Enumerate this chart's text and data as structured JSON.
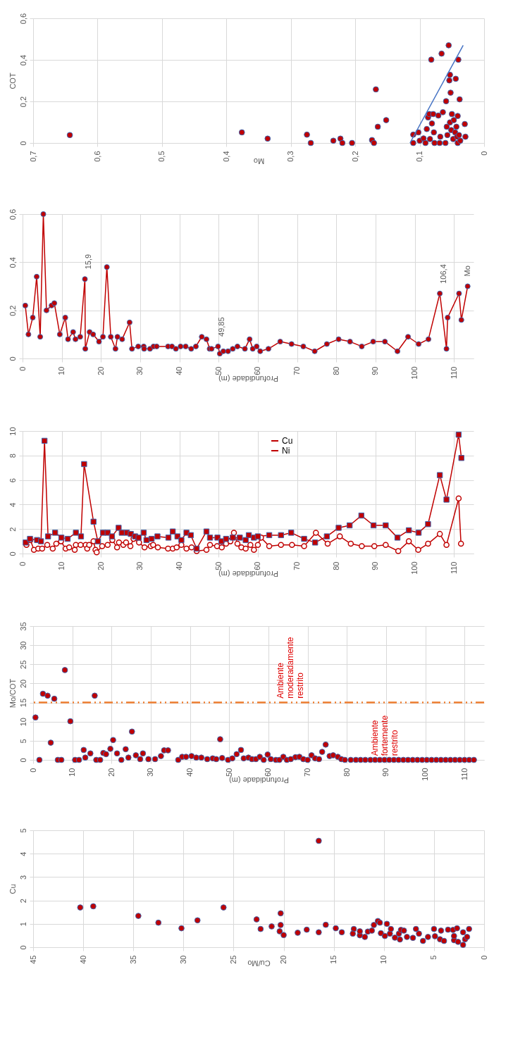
{
  "chart_data": [
    {
      "type": "scatter",
      "xlabel": "Mo",
      "ylabel": "COT",
      "grid": true,
      "xlim": [
        0.7,
        0
      ],
      "xticks": [
        {
          "value": 0.7,
          "label": "0,7"
        },
        {
          "value": 0.6,
          "label": "0,6"
        },
        {
          "value": 0.5,
          "label": "0,5"
        },
        {
          "value": 0.4,
          "label": "0,4"
        },
        {
          "value": 0.3,
          "label": "0,3"
        },
        {
          "value": 0.2,
          "label": "0,2"
        },
        {
          "value": 0.1,
          "label": "0,1"
        },
        0
      ],
      "ylim": [
        0,
        0.6
      ],
      "yticks": [
        0,
        {
          "value": 0.2,
          "label": "0,2"
        },
        {
          "value": 0.4,
          "label": "0,4"
        },
        {
          "value": 0.6,
          "label": "0,6"
        }
      ],
      "series": [
        {
          "color": "#c00000",
          "marker": "circle",
          "x": [
            0.643,
            0.376,
            0.336,
            0.275,
            0.269,
            0.234,
            0.223,
            0.22,
            0.205,
            0.174,
            0.171,
            0.168,
            0.165,
            0.152,
            0.11,
            0.11,
            0.102,
            0.1,
            0.094,
            0.091,
            0.089,
            0.087,
            0.085,
            0.084,
            0.082,
            0.081,
            0.079,
            0.078,
            0.077,
            0.071,
            0.069,
            0.068,
            0.066,
            0.064,
            0.06,
            0.059,
            0.058,
            0.057,
            0.055,
            0.054,
            0.053,
            0.053,
            0.052,
            0.051,
            0.05,
            0.048,
            0.047,
            0.045,
            0.044,
            0.043,
            0.042,
            0.041,
            0.041,
            0.04,
            0.039,
            0.038,
            0.037,
            0.03,
            0.029
          ],
          "values": [
            0.038,
            0.051,
            0.021,
            0.04,
            0,
            0.011,
            0.021,
            0,
            0,
            0.014,
            0,
            0.258,
            0.078,
            0.11,
            0.04,
            0,
            0.051,
            0.011,
            0.022,
            0,
            0.067,
            0.123,
            0.139,
            0.019,
            0.401,
            0.094,
            0.139,
            0.051,
            0,
            0.132,
            0,
            0.03,
            0.43,
            0.148,
            0,
            0.201,
            0.078,
            0.038,
            0.47,
            0.301,
            0.328,
            0.099,
            0.242,
            0.062,
            0.139,
            0.019,
            0.11,
            0.051,
            0.309,
            0.078,
            0.03,
            0.13,
            0,
            0.401,
            0.038,
            0.21,
            0.011,
            0.091,
            0.03
          ]
        },
        {
          "type": "line",
          "color": "#4472c4",
          "x": [
            0.115,
            0.0325
          ],
          "values": [
            0,
            0.47
          ]
        }
      ]
    },
    {
      "type": "line",
      "xlabel": "Profundidade (m)",
      "grid": true,
      "marker": "circle",
      "xlim": [
        0,
        115
      ],
      "xticks": [
        0,
        10,
        20,
        30,
        40,
        50,
        60,
        70,
        80,
        90,
        100,
        110
      ],
      "ylim": [
        0,
        0.6
      ],
      "yticks": [
        0,
        {
          "value": 0.2,
          "label": "0,2"
        },
        {
          "value": 0.4,
          "label": "0,4"
        },
        {
          "value": 0.6,
          "label": "0,6"
        }
      ],
      "x": [
        0.7,
        1.5,
        2.6,
        3.6,
        4.5,
        5.3,
        6.1,
        7.4,
        8.1,
        9.5,
        10.9,
        11.6,
        12.9,
        13.5,
        14.7,
        15.9,
        16.0,
        17.1,
        18.0,
        19.5,
        20.5,
        21.5,
        22.5,
        23.7,
        24.2,
        25.4,
        27.3,
        27.9,
        29.5,
        30.9,
        31.0,
        32.5,
        33.4,
        34.2,
        37.1,
        38.1,
        39.1,
        40.3,
        41.6,
        43.0,
        44.2,
        45.7,
        46.9,
        47.7,
        48.2,
        49.85,
        50.3,
        51.2,
        52.4,
        53.6,
        54.8,
        56.7,
        57.9,
        58.7,
        59.7,
        60.6,
        62.7,
        65.7,
        68.6,
        71.6,
        74.5,
        77.6,
        80.6,
        83.5,
        86.5,
        89.4,
        92.4,
        95.6,
        98.3,
        101.0,
        103.5,
        106.4,
        108.1,
        108.4,
        111.3,
        111.9,
        113.5
      ],
      "series": [
        {
          "name": "Mo",
          "color": "#c00000",
          "values": [
            0.22,
            0.1,
            0.17,
            0.34,
            0.09,
            0.6,
            0.2,
            0.22,
            0.23,
            0.1,
            0.17,
            0.08,
            0.11,
            0.08,
            0.09,
            0.33,
            0.04,
            0.11,
            0.1,
            0.07,
            0.09,
            0.38,
            0.09,
            0.04,
            0.09,
            0.08,
            0.15,
            0.04,
            0.05,
            0.05,
            0.04,
            0.04,
            0.05,
            0.05,
            0.05,
            0.05,
            0.04,
            0.05,
            0.05,
            0.04,
            0.05,
            0.09,
            0.08,
            0.04,
            0.04,
            0.05,
            0.02,
            0.03,
            0.03,
            0.04,
            0.05,
            0.04,
            0.08,
            0.04,
            0.05,
            0.03,
            0.04,
            0.07,
            0.06,
            0.05,
            0.03,
            0.06,
            0.08,
            0.07,
            0.05,
            0.07,
            0.07,
            0.03,
            0.09,
            0.06,
            0.08,
            0.27,
            0.04,
            0.17,
            0.27,
            0.16,
            0.3
          ]
        }
      ],
      "annotations": [
        {
          "text": "15,9",
          "x": 15.9,
          "y": 0.33
        },
        {
          "text": "49,85",
          "x": 49.85,
          "y": 0.05
        },
        {
          "text": "106,4",
          "x": 106.4,
          "y": 0.27
        }
      ]
    },
    {
      "type": "line",
      "xlabel": "Profundidade (m)",
      "grid": true,
      "legend": "top",
      "xlim": [
        0,
        115
      ],
      "xticks": [
        0,
        10,
        20,
        30,
        40,
        50,
        60,
        70,
        80,
        90,
        100,
        110
      ],
      "ylim": [
        0,
        10
      ],
      "yticks": [
        0,
        2,
        4,
        6,
        8,
        10
      ],
      "series": [
        {
          "name": "Cu",
          "color": "#c00000",
          "marker": "circle",
          "x": [
            1.0,
            2.0,
            2.9,
            4.0,
            5.0,
            6.3,
            7.7,
            8.6,
            9.8,
            11.0,
            11.9,
            13.3,
            13.6,
            14.8,
            16.1,
            16.5,
            17.0,
            18.1,
            18.6,
            18.9,
            20.3,
            21.7,
            22.9,
            24.1,
            24.6,
            25.7,
            26.4,
            27.5,
            28.3,
            29.7,
            31.1,
            32.7,
            33.3,
            34.5,
            37.1,
            38.3,
            39.3,
            40.5,
            41.8,
            43.1,
            44.4,
            46.9,
            47.8,
            49.6,
            50.8,
            51.9,
            53.0,
            53.9,
            54.8,
            55.8,
            56.9,
            58.1,
            59.0,
            60.0,
            60.8,
            62.9,
            65.9,
            68.7,
            71.8,
            74.8,
            77.8,
            80.9,
            83.7,
            86.5,
            89.7,
            92.6,
            95.8,
            98.5,
            100.9,
            103.4,
            106.4,
            108.1,
            111.2,
            111.8
          ],
          "values": [
            0.7,
            1.1,
            0.3,
            0.4,
            0.4,
            0.7,
            0.4,
            0.8,
            1.0,
            0.4,
            0.5,
            0.3,
            0.7,
            0.7,
            0.7,
            0.4,
            0.7,
            1.0,
            0.3,
            0.1,
            0.6,
            0.7,
            1.1,
            0.5,
            0.9,
            0.7,
            0.9,
            0.6,
            1.2,
            0.9,
            0.5,
            0.6,
            0.7,
            0.5,
            0.4,
            0.4,
            0.5,
            0.7,
            0.4,
            0.5,
            0.2,
            0.3,
            0.7,
            0.6,
            0.5,
            0.8,
            1.0,
            1.7,
            0.8,
            0.5,
            0.4,
            0.7,
            0.3,
            0.7,
            1.3,
            0.6,
            0.7,
            0.7,
            0.6,
            1.7,
            0.8,
            1.4,
            0.8,
            0.6,
            0.6,
            0.7,
            0.2,
            1.0,
            0.3,
            0.8,
            1.6,
            0.7,
            4.5,
            0.8
          ]
        },
        {
          "name": "Ni",
          "color": "#c00000",
          "marker": "square",
          "x": [
            0.8,
            1.9,
            3.7,
            4.7,
            5.6,
            6.5,
            8.3,
            9.9,
            11.5,
            13.6,
            14.9,
            15.7,
            18.1,
            19.2,
            20.5,
            21.7,
            22.8,
            24.5,
            25.3,
            26.6,
            27.6,
            28.7,
            29.6,
            30.9,
            31.6,
            32.9,
            34.4,
            37.2,
            38.3,
            39.5,
            40.5,
            41.8,
            42.9,
            44.4,
            46.9,
            47.8,
            49.7,
            50.7,
            51.9,
            53.6,
            55.4,
            56.9,
            57.7,
            59.0,
            60.0,
            62.9,
            65.9,
            68.5,
            71.8,
            74.6,
            77.6,
            80.6,
            83.4,
            86.4,
            89.5,
            92.6,
            95.6,
            98.5,
            101.0,
            103.4,
            106.4,
            108.1,
            111.2,
            111.9
          ],
          "values": [
            0.9,
            1.2,
            1.1,
            1.0,
            9.2,
            1.4,
            1.7,
            1.3,
            1.2,
            1.7,
            1.4,
            7.3,
            2.6,
            1.0,
            1.7,
            1.7,
            1.4,
            2.1,
            1.7,
            1.7,
            1.6,
            1.4,
            1.3,
            1.7,
            1.1,
            1.2,
            1.4,
            1.3,
            1.8,
            1.4,
            1.1,
            1.7,
            1.5,
            0.4,
            1.8,
            1.3,
            1.3,
            1.0,
            1.2,
            1.3,
            1.3,
            1.1,
            1.5,
            1.3,
            1.4,
            1.5,
            1.5,
            1.7,
            1.2,
            0.9,
            1.4,
            2.1,
            2.3,
            3.1,
            2.3,
            2.3,
            1.3,
            1.9,
            1.7,
            2.4,
            6.4,
            4.4,
            9.7,
            7.8
          ]
        }
      ]
    },
    {
      "type": "scatter",
      "xlabel": "Profundidade (m)",
      "ylabel": "Mo/COT",
      "grid": true,
      "xlim": [
        0,
        115
      ],
      "xticks": [
        0,
        10,
        20,
        30,
        40,
        50,
        60,
        70,
        80,
        90,
        100,
        110
      ],
      "ylim": [
        0,
        35
      ],
      "yticks": [
        0,
        5,
        10,
        15,
        20,
        25,
        30,
        35
      ],
      "series": [
        {
          "color": "#c00000",
          "marker": "circle",
          "x": [
            0.6,
            1.6,
            2.5,
            3.7,
            4.5,
            5.4,
            6.3,
            7.2,
            8.1,
            9.5,
            10.7,
            11.7,
            12.9,
            13.3,
            14.6,
            15.7,
            16.1,
            17.1,
            17.9,
            18.6,
            19.7,
            20.4,
            21.4,
            22.5,
            23.6,
            24.3,
            25.2,
            26.2,
            27.3,
            28.0,
            29.4,
            31.1,
            32.6,
            33.4,
            34.4,
            37.0,
            38.0,
            39.0,
            40.4,
            41.6,
            42.9,
            44.4,
            45.8,
            46.7,
            47.7,
            48.2,
            49.7,
            50.8,
            51.9,
            53.0,
            53.7,
            54.9,
            55.8,
            56.8,
            57.8,
            58.8,
            59.8,
            60.6,
            61.9,
            62.8,
            63.8,
            64.7,
            65.7,
            66.9,
            67.9,
            68.9,
            70.0,
            71.0,
            71.9,
            72.9,
            73.7,
            74.6,
            75.6,
            76.5,
            77.7,
            78.6,
            79.5,
            81,
            82.3,
            83.5,
            84.7,
            86,
            87.2,
            88.4,
            89.6,
            90.8,
            92,
            93.2,
            94.4,
            95.6,
            96.8,
            98,
            99.2,
            100.4,
            101.6,
            102.8,
            104,
            105.2,
            106.4,
            107.6,
            108.8,
            110,
            111.2,
            112.4
          ],
          "values": [
            11.1,
            0,
            17.3,
            16.8,
            4.5,
            16.0,
            0,
            0,
            23.5,
            10.1,
            0,
            0,
            2.6,
            0.6,
            1.7,
            16.8,
            0,
            0,
            1.8,
            1.5,
            2.9,
            5.2,
            1.7,
            0,
            2.8,
            0.6,
            7.4,
            1.2,
            0.2,
            1.7,
            0.2,
            0.2,
            1.0,
            2.5,
            2.5,
            0,
            0.8,
            0.8,
            1.0,
            0.6,
            0.6,
            0.2,
            0.4,
            0.2,
            5.4,
            0.5,
            0,
            0.4,
            1.5,
            2.6,
            0.4,
            0.6,
            0.2,
            0.2,
            0.8,
            0,
            1.4,
            0.2,
            0,
            0,
            0.8,
            0,
            0.2,
            0.7,
            0.8,
            0.2,
            0,
            1.2,
            0.4,
            0.2,
            2.1,
            4.0,
            1.0,
            1.2,
            0.8,
            0.2,
            0,
            0,
            0,
            0,
            0,
            0,
            0,
            0,
            0,
            0,
            0,
            0,
            0,
            0,
            0,
            0,
            0,
            0,
            0,
            0,
            0,
            0,
            0,
            0,
            0,
            0,
            0,
            0
          ]
        }
      ],
      "ref_lines": [
        {
          "axis": "y",
          "value": 15,
          "color": "#ed7d31",
          "line_style": "dashed"
        }
      ],
      "annotations": [
        "Ambiente moderadamente restrito",
        "Ambiente fortemente restrito"
      ]
    },
    {
      "type": "scatter",
      "xlabel": "Cu/Mo",
      "ylabel": "Cu",
      "grid": true,
      "xlim": [
        45,
        0
      ],
      "xticks": [
        45,
        40,
        35,
        30,
        25,
        20,
        15,
        10,
        5,
        0
      ],
      "ylim": [
        0,
        5
      ],
      "yticks": [
        0,
        1,
        2,
        3,
        4,
        5
      ],
      "series": [
        {
          "color": "#c00000",
          "marker": "circle",
          "x": [
            40.3,
            39.0,
            34.5,
            32.5,
            30.2,
            28.6,
            26.0,
            22.7,
            22.3,
            21.2,
            20.3,
            20.3,
            20.4,
            20.0,
            18.6,
            17.7,
            16.5,
            16.5,
            15.8,
            14.8,
            14.2,
            13.0,
            13.1,
            12.4,
            12.4,
            11.9,
            11.6,
            11.2,
            11.0,
            10.6,
            10.4,
            10.3,
            9.9,
            9.7,
            9.4,
            9.3,
            8.9,
            8.5,
            8.4,
            8.3,
            8.0,
            7.7,
            7.1,
            6.8,
            6.5,
            6.1,
            5.6,
            5.0,
            4.9,
            4.4,
            4.3,
            4.0,
            3.6,
            3.1,
            3.0,
            3.0,
            2.7,
            2.6,
            2.1,
            2.1,
            1.9,
            1.7,
            1.5
          ],
          "values": [
            1.7,
            1.75,
            1.34,
            1.05,
            0.81,
            1.15,
            1.7,
            1.19,
            0.78,
            0.89,
            1.45,
            0.95,
            0.68,
            0.52,
            0.62,
            0.75,
            4.55,
            0.64,
            0.96,
            0.81,
            0.64,
            0.78,
            0.58,
            0.51,
            0.68,
            0.44,
            0.67,
            0.71,
            0.95,
            1.12,
            1.05,
            0.6,
            0.48,
            1.0,
            0.58,
            0.78,
            0.41,
            0.58,
            0.33,
            0.74,
            0.71,
            0.44,
            0.4,
            0.78,
            0.58,
            0.27,
            0.44,
            0.78,
            0.47,
            0.34,
            0.71,
            0.27,
            0.75,
            0.74,
            0.3,
            0.48,
            0.81,
            0.23,
            0.64,
            0.1,
            0.34,
            0.44,
            0.78
          ]
        }
      ]
    }
  ]
}
